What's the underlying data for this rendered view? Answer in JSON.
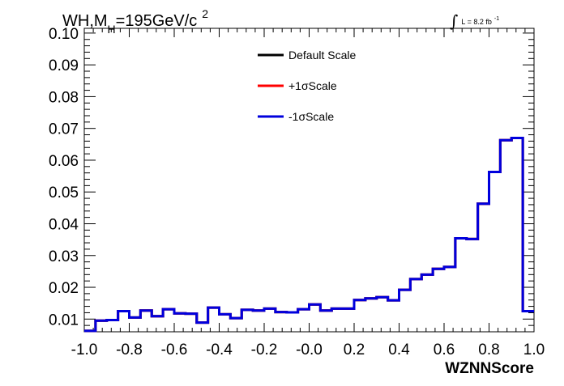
{
  "chart_data": {
    "type": "step-histogram",
    "title": {
      "prefix": "WH,M",
      "subscript": "H",
      "value": "=195GeV/c",
      "superscript": "2"
    },
    "luminosity": {
      "symbol": "∫",
      "text": "L = 8.2 fb",
      "superscript": "-1"
    },
    "xlabel": "WZNNScore",
    "ylabel": "",
    "xlim": [
      -1.0,
      1.0
    ],
    "ylim": [
      0.006,
      0.1015
    ],
    "xticks": [
      -1.0,
      -0.8,
      -0.6,
      -0.4,
      -0.2,
      0.0,
      0.2,
      0.4,
      0.6,
      0.8,
      1.0
    ],
    "xtick_labels": [
      "-1.0",
      "-0.8",
      "-0.6",
      "-0.4",
      "-0.2",
      "-0.0",
      "0.2",
      "0.4",
      "0.6",
      "0.8",
      "1.0"
    ],
    "yticks": [
      0.01,
      0.02,
      0.03,
      0.04,
      0.05,
      0.06,
      0.07,
      0.08,
      0.09,
      0.1
    ],
    "ytick_labels": [
      "0.01",
      "0.02",
      "0.03",
      "0.04",
      "0.05",
      "0.06",
      "0.07",
      "0.08",
      "0.09",
      "0.10"
    ],
    "legend_position": "top-center",
    "legend": [
      {
        "label": "Default Scale",
        "color": "#000000"
      },
      {
        "label": "+1σScale",
        "color": "#ff0000"
      },
      {
        "label": "-1σScale",
        "color": "#0000dd"
      }
    ],
    "bin_edges": [
      -1.0,
      -0.95,
      -0.9,
      -0.85,
      -0.8,
      -0.75,
      -0.7,
      -0.65,
      -0.6,
      -0.55,
      -0.5,
      -0.45,
      -0.4,
      -0.35,
      -0.3,
      -0.25,
      -0.2,
      -0.15,
      -0.1,
      -0.05,
      0.0,
      0.05,
      0.1,
      0.15,
      0.2,
      0.25,
      0.3,
      0.35,
      0.4,
      0.45,
      0.5,
      0.55,
      0.6,
      0.65,
      0.7,
      0.75,
      0.8,
      0.85,
      0.9,
      0.95,
      1.0
    ],
    "series": [
      {
        "name": "Default Scale",
        "color": "#000000",
        "values": [
          0.0063,
          0.0095,
          0.0097,
          0.0125,
          0.0105,
          0.0127,
          0.0109,
          0.0131,
          0.0118,
          0.0117,
          0.0089,
          0.0136,
          0.0115,
          0.0103,
          0.0129,
          0.0127,
          0.0133,
          0.0122,
          0.0121,
          0.0131,
          0.0146,
          0.0127,
          0.0133,
          0.0133,
          0.016,
          0.0165,
          0.0169,
          0.0159,
          0.0192,
          0.0226,
          0.024,
          0.0258,
          0.0264,
          0.0354,
          0.0352,
          0.0463,
          0.0563,
          0.0663,
          0.067,
          0.0125
        ]
      },
      {
        "name": "+1σScale",
        "color": "#ff0000",
        "values": [
          0.0063,
          0.0095,
          0.0097,
          0.0125,
          0.0105,
          0.0127,
          0.0109,
          0.0131,
          0.0118,
          0.0117,
          0.0089,
          0.0136,
          0.0115,
          0.0103,
          0.0129,
          0.0127,
          0.0133,
          0.0122,
          0.0121,
          0.0131,
          0.0146,
          0.0127,
          0.0133,
          0.0133,
          0.016,
          0.0165,
          0.0169,
          0.0159,
          0.0192,
          0.0226,
          0.024,
          0.0258,
          0.0264,
          0.0354,
          0.0352,
          0.0463,
          0.0563,
          0.0663,
          0.067,
          0.0125
        ]
      },
      {
        "name": "-1σScale",
        "color": "#0000dd",
        "values": [
          0.0063,
          0.0095,
          0.0097,
          0.0125,
          0.0105,
          0.0127,
          0.0109,
          0.0131,
          0.0118,
          0.0117,
          0.0089,
          0.0136,
          0.0115,
          0.0103,
          0.0129,
          0.0127,
          0.0133,
          0.0122,
          0.0121,
          0.0131,
          0.0146,
          0.0127,
          0.0133,
          0.0133,
          0.016,
          0.0165,
          0.0169,
          0.0159,
          0.0192,
          0.0226,
          0.024,
          0.0258,
          0.0264,
          0.0354,
          0.0352,
          0.0463,
          0.0563,
          0.0663,
          0.067,
          0.0125
        ]
      }
    ]
  }
}
